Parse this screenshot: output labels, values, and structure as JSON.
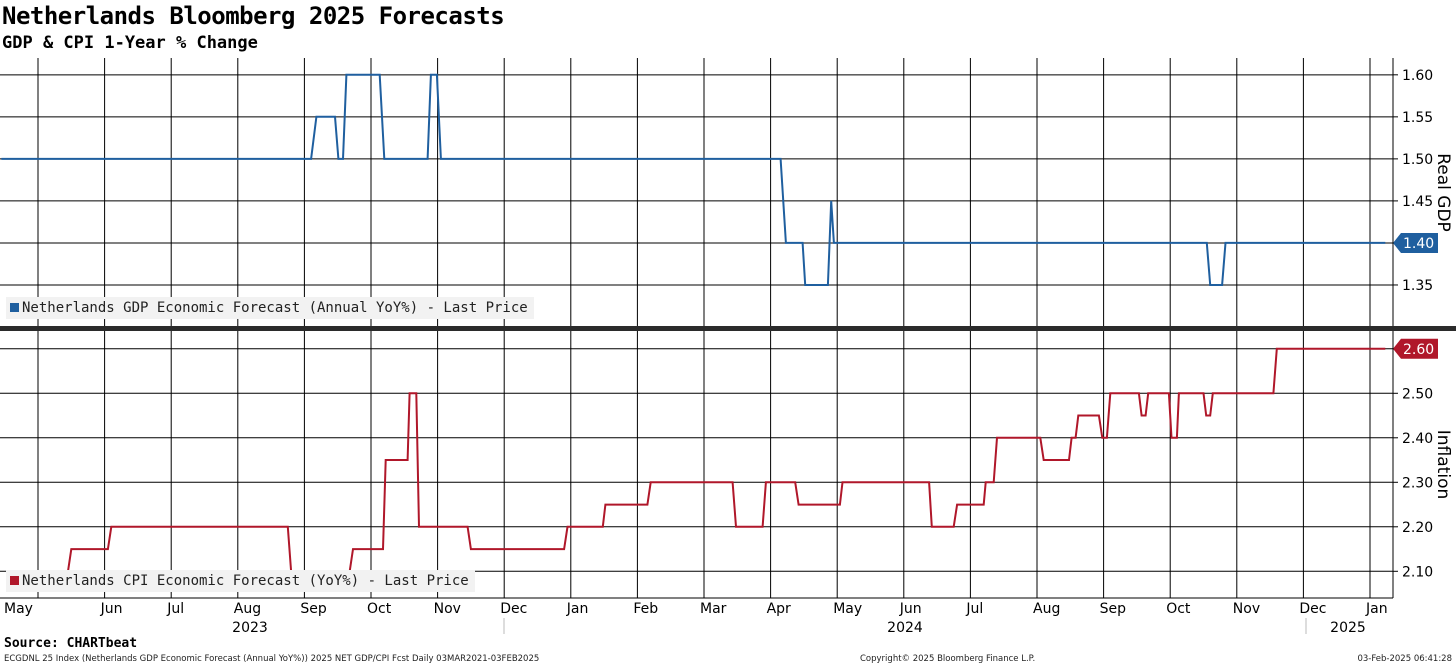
{
  "title": "Netherlands Bloomberg 2025 Forecasts",
  "subtitle": "GDP & CPI 1-Year % Change",
  "source": "Source: CHARTbeat",
  "footer": {
    "left": "ECGDNL 25 Index (Netherlands GDP Economic Forecast (Annual YoY%)) 2025 NET GDP/CPI Fcst  Daily 03MAR2021-03FEB2025",
    "center": "Copyright© 2025 Bloomberg Finance L.P.",
    "right": "03-Feb-2025 06:41:28"
  },
  "colors": {
    "gdp": "#1f5f9f",
    "cpi": "#b0172a",
    "grid": "#000000"
  },
  "chart_data": [
    {
      "type": "line",
      "panel": "top",
      "ylabel": "Real GDP",
      "ylim": [
        1.3,
        1.62
      ],
      "yticks": [
        "1.35",
        "1.40",
        "1.45",
        "1.50",
        "1.55",
        "1.60"
      ],
      "legend": "Netherlands GDP Economic Forecast (Annual YoY%) - Last Price",
      "last_value": "1.40",
      "series": {
        "name": "Netherlands GDP Economic Forecast (Annual YoY%)",
        "x": [
          -0.55,
          4.1,
          4.18,
          4.46,
          4.51,
          4.58,
          4.63,
          5.13,
          5.2,
          5.85,
          5.9,
          5.99,
          6.05,
          11.15,
          11.23,
          11.48,
          11.52,
          11.86,
          11.91,
          11.95,
          12.01,
          17.55,
          17.6,
          17.78,
          17.83,
          20.23
        ],
        "values": [
          1.5,
          1.5,
          1.55,
          1.55,
          1.5,
          1.5,
          1.6,
          1.6,
          1.5,
          1.5,
          1.6,
          1.6,
          1.5,
          1.5,
          1.4,
          1.4,
          1.35,
          1.35,
          1.45,
          1.4,
          1.4,
          1.4,
          1.35,
          1.35,
          1.4,
          1.4
        ]
      }
    },
    {
      "type": "line",
      "panel": "bottom",
      "ylabel": "Inflation",
      "ylim": [
        2.04,
        2.64
      ],
      "yticks": [
        "2.10",
        "2.20",
        "2.30",
        "2.40",
        "2.50",
        "2.60"
      ],
      "legend": "Netherlands CPI Economic Forecast (YoY%) - Last Price",
      "last_value": "2.60",
      "series": {
        "name": "Netherlands CPI Economic Forecast (YoY%)",
        "x": [
          0.1,
          0.45,
          0.5,
          1.05,
          1.1,
          1.2,
          1.25,
          3.75,
          3.8,
          4.5,
          4.55,
          4.68,
          4.73,
          5.18,
          5.22,
          5.28,
          5.33,
          5.55,
          5.58,
          5.68,
          5.72,
          5.88,
          5.92,
          6.45,
          6.5,
          7.9,
          7.95,
          8.48,
          8.52,
          9.15,
          9.2,
          9.42,
          9.45,
          9.5,
          9.53,
          9.7,
          9.75,
          10.43,
          10.48,
          10.88,
          10.93,
          11.37,
          11.42,
          11.7,
          11.75,
          12.04,
          12.08,
          12.6,
          12.64,
          13.38,
          13.42,
          13.75,
          13.8,
          14.2,
          14.23,
          14.35,
          14.4,
          15.05,
          15.1,
          15.12,
          15.17,
          15.48,
          15.52,
          15.58,
          15.62,
          15.93,
          15.98,
          16.05,
          16.1,
          16.35,
          16.4,
          16.53,
          16.57,
          16.63,
          16.67,
          16.98,
          17.02,
          17.1,
          17.13,
          17.5,
          17.54,
          17.6,
          17.64,
          18.55,
          18.6,
          18.7,
          18.75,
          20.23
        ],
        "values": [
          2.1,
          2.1,
          2.15,
          2.15,
          2.2,
          2.2,
          2.2,
          2.2,
          2.1,
          2.1,
          2.1,
          2.1,
          2.15,
          2.15,
          2.35,
          2.35,
          2.35,
          2.35,
          2.5,
          2.5,
          2.2,
          2.2,
          2.2,
          2.2,
          2.15,
          2.15,
          2.2,
          2.2,
          2.25,
          2.25,
          2.3,
          2.3,
          2.3,
          2.3,
          2.3,
          2.3,
          2.3,
          2.3,
          2.2,
          2.2,
          2.3,
          2.3,
          2.25,
          2.25,
          2.25,
          2.25,
          2.3,
          2.3,
          2.3,
          2.3,
          2.2,
          2.2,
          2.25,
          2.25,
          2.3,
          2.3,
          2.4,
          2.4,
          2.35,
          2.35,
          2.35,
          2.35,
          2.4,
          2.4,
          2.45,
          2.45,
          2.4,
          2.4,
          2.5,
          2.5,
          2.5,
          2.5,
          2.45,
          2.45,
          2.5,
          2.5,
          2.4,
          2.4,
          2.5,
          2.5,
          2.45,
          2.45,
          2.5,
          2.5,
          2.6,
          2.6,
          2.6,
          2.6
        ],
        "_note": "see script — segments are step-like"
      }
    }
  ],
  "xaxis": {
    "months": [
      "May",
      "Jun",
      "Jul",
      "Aug",
      "Sep",
      "Oct",
      "Nov",
      "Dec",
      "Jan",
      "Feb",
      "Mar",
      "Apr",
      "May",
      "Jun",
      "Jul",
      "Aug",
      "Sep",
      "Oct",
      "Nov",
      "Dec",
      "Jan"
    ],
    "years": [
      "2023",
      "2024",
      "2025"
    ]
  }
}
